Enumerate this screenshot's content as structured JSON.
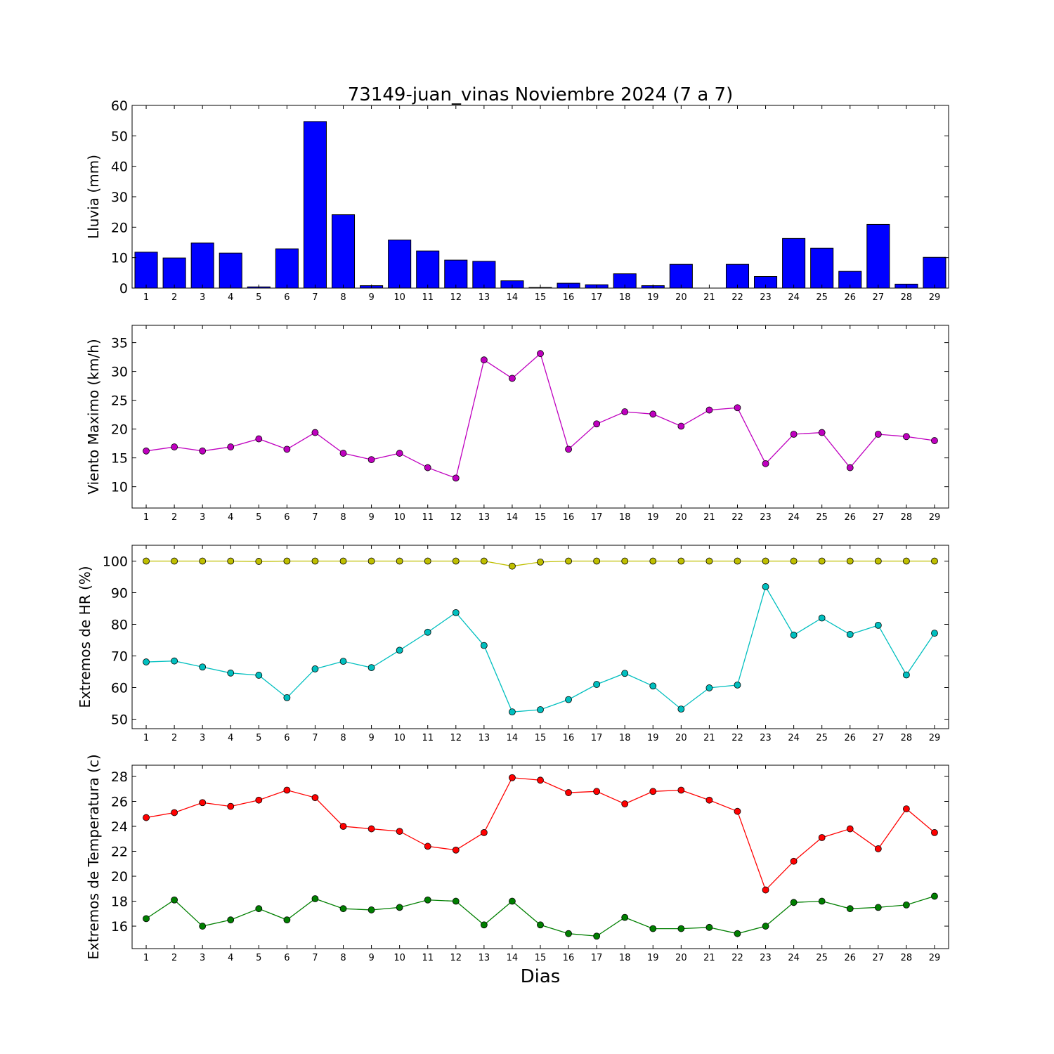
{
  "chart_data": [
    {
      "type": "bar",
      "title": "73149-juan_vinas Noviembre 2024  (7 a 7)",
      "xlabel": "",
      "ylabel": "Lluvia (mm)",
      "x": [
        1,
        2,
        3,
        4,
        5,
        6,
        7,
        8,
        9,
        10,
        11,
        12,
        13,
        14,
        15,
        16,
        17,
        18,
        19,
        20,
        21,
        22,
        23,
        24,
        25,
        26,
        27,
        28,
        29
      ],
      "xlim": [
        0.5,
        29.5
      ],
      "ylim": [
        0,
        60
      ],
      "yticks": [
        0,
        10,
        20,
        30,
        40,
        50,
        60
      ],
      "series": [
        {
          "color": "#0000ff",
          "values": [
            11.8,
            9.9,
            14.8,
            11.5,
            0.4,
            12.9,
            54.7,
            24.1,
            0.8,
            15.8,
            12.2,
            9.2,
            8.8,
            2.4,
            0.2,
            1.6,
            1.1,
            4.7,
            0.8,
            7.8,
            0.0,
            7.8,
            3.8,
            16.3,
            13.1,
            5.5,
            20.9,
            1.3,
            10.1
          ]
        }
      ]
    },
    {
      "type": "line",
      "title": "",
      "xlabel": "",
      "ylabel": "Viento Maximo (km/h)",
      "x": [
        1,
        2,
        3,
        4,
        5,
        6,
        7,
        8,
        9,
        10,
        11,
        12,
        13,
        14,
        15,
        16,
        17,
        18,
        19,
        20,
        21,
        22,
        23,
        24,
        25,
        26,
        27,
        28,
        29
      ],
      "xlim": [
        0.5,
        29.5
      ],
      "ylim": [
        6.3,
        38
      ],
      "yticks": [
        10,
        15,
        20,
        25,
        30,
        35
      ],
      "series": [
        {
          "color": "#bf00bf",
          "values": [
            16.2,
            16.9,
            16.2,
            16.9,
            18.3,
            16.5,
            19.4,
            15.8,
            14.7,
            15.8,
            13.3,
            11.5,
            32.0,
            28.8,
            33.1,
            16.5,
            20.9,
            23.0,
            22.6,
            20.5,
            23.3,
            23.7,
            14.0,
            19.1,
            19.4,
            13.3,
            19.1,
            18.7,
            18.0
          ]
        }
      ]
    },
    {
      "type": "line",
      "title": "",
      "xlabel": "",
      "ylabel": "Extremos de HR (%)",
      "x": [
        1,
        2,
        3,
        4,
        5,
        6,
        7,
        8,
        9,
        10,
        11,
        12,
        13,
        14,
        15,
        16,
        17,
        18,
        19,
        20,
        21,
        22,
        23,
        24,
        25,
        26,
        27,
        28,
        29
      ],
      "xlim": [
        0.5,
        29.5
      ],
      "ylim": [
        47,
        105
      ],
      "yticks": [
        50,
        60,
        70,
        80,
        90,
        100
      ],
      "series": [
        {
          "color": "#bfbf00",
          "values": [
            100,
            100,
            100,
            100,
            99.9,
            100,
            100,
            100,
            100,
            100,
            100,
            100,
            100,
            98.4,
            99.7,
            100,
            100,
            100,
            100,
            100,
            100,
            100,
            100,
            100,
            100,
            100,
            100,
            100,
            100
          ]
        },
        {
          "color": "#00bfbf",
          "values": [
            68.1,
            68.4,
            66.5,
            64.6,
            63.9,
            56.8,
            65.9,
            68.3,
            66.3,
            71.8,
            77.5,
            83.7,
            73.3,
            52.3,
            53.0,
            56.2,
            61.0,
            64.5,
            60.5,
            53.2,
            59.9,
            60.8,
            91.9,
            76.6,
            82.0,
            76.8,
            79.7,
            64.0,
            77.2
          ]
        }
      ]
    },
    {
      "type": "line",
      "title": "",
      "xlabel": "Dias",
      "ylabel": "Extremos de Temperatura (c)",
      "x": [
        1,
        2,
        3,
        4,
        5,
        6,
        7,
        8,
        9,
        10,
        11,
        12,
        13,
        14,
        15,
        16,
        17,
        18,
        19,
        20,
        21,
        22,
        23,
        24,
        25,
        26,
        27,
        28,
        29
      ],
      "xlim": [
        0.5,
        29.5
      ],
      "ylim": [
        14.2,
        28.9
      ],
      "yticks": [
        16,
        18,
        20,
        22,
        24,
        26,
        28
      ],
      "series": [
        {
          "color": "#ff0000",
          "values": [
            24.7,
            25.1,
            25.9,
            25.6,
            26.1,
            26.9,
            26.3,
            24.0,
            23.8,
            23.6,
            22.4,
            22.1,
            23.5,
            27.9,
            27.7,
            26.7,
            26.8,
            25.8,
            26.8,
            26.9,
            26.1,
            25.2,
            18.9,
            21.2,
            23.1,
            23.8,
            22.2,
            25.4,
            23.5
          ]
        },
        {
          "color": "#007f00",
          "values": [
            16.6,
            18.1,
            16.0,
            16.5,
            17.4,
            16.5,
            18.2,
            17.4,
            17.3,
            17.5,
            18.1,
            18.0,
            16.1,
            18.0,
            16.1,
            15.4,
            15.2,
            16.7,
            15.8,
            15.8,
            15.9,
            15.4,
            16.0,
            17.9,
            18.0,
            17.4,
            17.5,
            17.7,
            18.4
          ]
        }
      ]
    }
  ]
}
